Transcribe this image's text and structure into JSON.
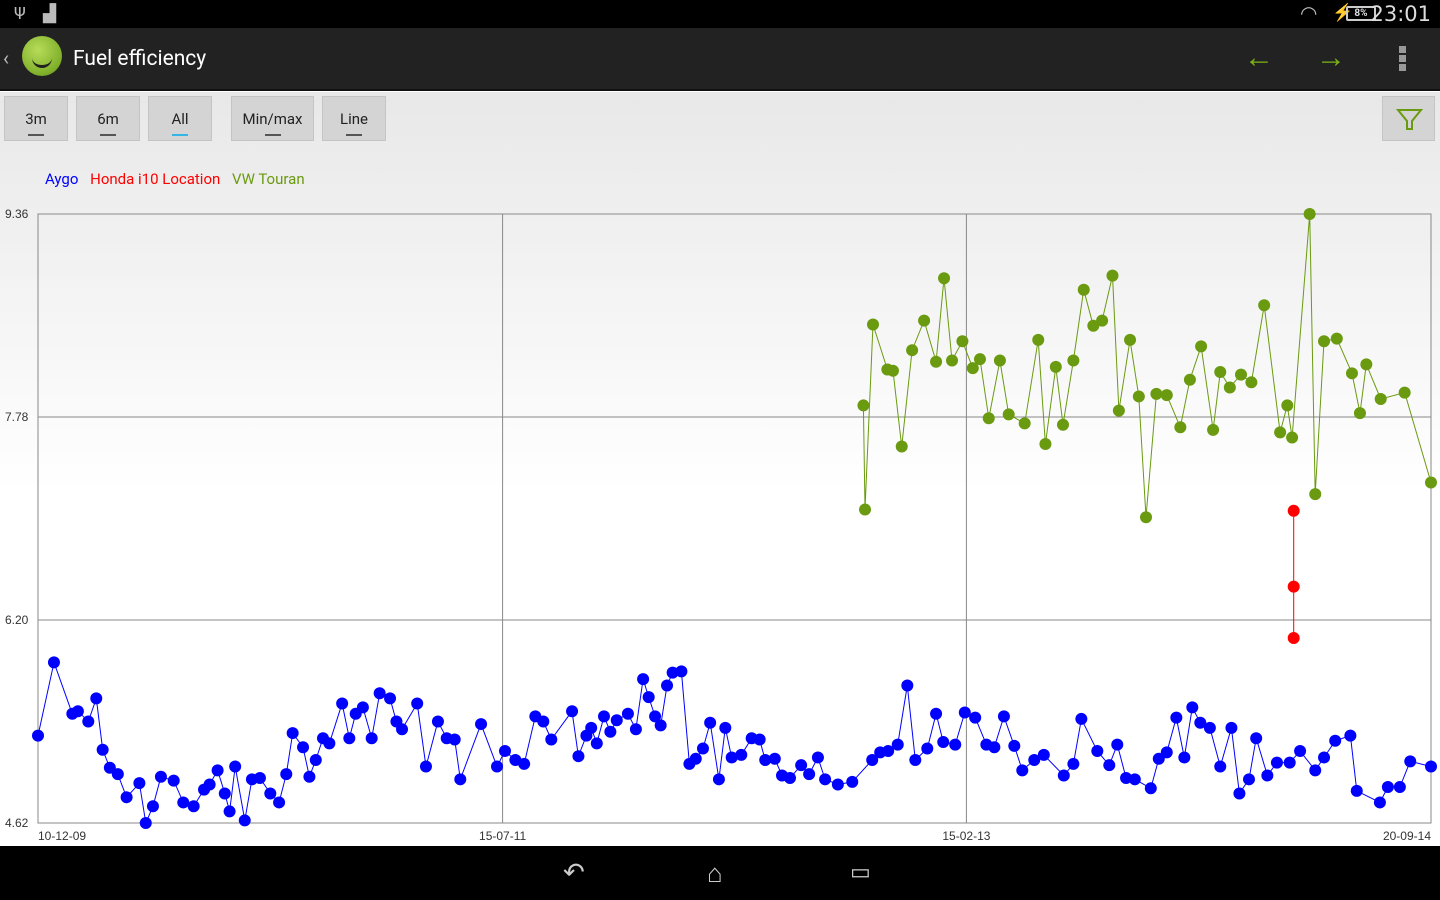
{
  "status_bar": {
    "time": "23:01",
    "battery": "8%",
    "icons": [
      "usb-icon",
      "android-icon",
      "wifi-icon",
      "charging-icon",
      "battery-icon"
    ]
  },
  "action_bar": {
    "title": "Fuel efficiency",
    "icons": [
      "back-caret-icon",
      "app-smiley-icon",
      "arrow-left-icon",
      "arrow-right-icon",
      "overflow-menu-icon"
    ],
    "accent": "#7cb518"
  },
  "toolbar": {
    "buttons": [
      {
        "label": "3m",
        "active": false
      },
      {
        "label": "6m",
        "active": false
      },
      {
        "label": "All",
        "active": true
      },
      {
        "label": "Min/max",
        "active": false
      },
      {
        "label": "Line",
        "active": false
      }
    ],
    "filter_icon": "filter-funnel-icon"
  },
  "nav_bar": {
    "icons": [
      "back-icon",
      "home-icon",
      "recent-apps-icon"
    ]
  },
  "chart_data": {
    "type": "line",
    "legend_position": "top-left",
    "grid": true,
    "xlim": [
      "2009-12-10",
      "2014-09-20"
    ],
    "ylim": [
      4.62,
      9.36
    ],
    "y_ticks": [
      "4.62",
      "6.20",
      "7.78",
      "9.36"
    ],
    "x_ticks": [
      "10-12-09",
      "15-07-11",
      "15-02-13",
      "20-09-14"
    ],
    "series": [
      {
        "name": "Aygo",
        "color": "#0000ff",
        "points": [
          [
            "2009-12-10",
            5.3
          ],
          [
            "2009-12-30",
            5.87
          ],
          [
            "2010-01-22",
            5.47
          ],
          [
            "2010-01-29",
            5.49
          ],
          [
            "2010-02-11",
            5.41
          ],
          [
            "2010-02-21",
            5.59
          ],
          [
            "2010-03-01",
            5.19
          ],
          [
            "2010-03-10",
            5.05
          ],
          [
            "2010-03-20",
            5.0
          ],
          [
            "2010-03-31",
            4.82
          ],
          [
            "2010-04-16",
            4.93
          ],
          [
            "2010-04-24",
            4.62
          ],
          [
            "2010-05-03",
            4.75
          ],
          [
            "2010-05-13",
            4.98
          ],
          [
            "2010-05-29",
            4.95
          ],
          [
            "2010-06-10",
            4.78
          ],
          [
            "2010-06-23",
            4.75
          ],
          [
            "2010-07-06",
            4.88
          ],
          [
            "2010-07-13",
            4.92
          ],
          [
            "2010-07-23",
            5.03
          ],
          [
            "2010-08-01",
            4.85
          ],
          [
            "2010-08-07",
            4.71
          ],
          [
            "2010-08-14",
            5.06
          ],
          [
            "2010-08-26",
            4.64
          ],
          [
            "2010-09-04",
            4.96
          ],
          [
            "2010-09-14",
            4.97
          ],
          [
            "2010-09-27",
            4.85
          ],
          [
            "2010-10-08",
            4.78
          ],
          [
            "2010-10-17",
            5.0
          ],
          [
            "2010-10-25",
            5.32
          ],
          [
            "2010-11-07",
            5.21
          ],
          [
            "2010-11-15",
            4.98
          ],
          [
            "2010-11-23",
            5.11
          ],
          [
            "2010-12-02",
            5.28
          ],
          [
            "2010-12-10",
            5.24
          ],
          [
            "2010-12-26",
            5.55
          ],
          [
            "2011-01-04",
            5.28
          ],
          [
            "2011-01-12",
            5.47
          ],
          [
            "2011-01-21",
            5.52
          ],
          [
            "2011-02-01",
            5.28
          ],
          [
            "2011-02-11",
            5.63
          ],
          [
            "2011-02-24",
            5.59
          ],
          [
            "2011-03-04",
            5.41
          ],
          [
            "2011-03-11",
            5.35
          ],
          [
            "2011-03-30",
            5.55
          ],
          [
            "2011-04-10",
            5.06
          ],
          [
            "2011-04-25",
            5.41
          ],
          [
            "2011-05-06",
            5.28
          ],
          [
            "2011-05-16",
            5.27
          ],
          [
            "2011-05-23",
            4.96
          ],
          [
            "2011-06-18",
            5.39
          ],
          [
            "2011-07-08",
            5.06
          ],
          [
            "2011-07-18",
            5.18
          ],
          [
            "2011-07-31",
            5.11
          ],
          [
            "2011-08-11",
            5.08
          ],
          [
            "2011-08-25",
            5.45
          ],
          [
            "2011-09-04",
            5.41
          ],
          [
            "2011-09-14",
            5.27
          ],
          [
            "2011-10-10",
            5.49
          ],
          [
            "2011-10-18",
            5.14
          ],
          [
            "2011-10-28",
            5.3
          ],
          [
            "2011-11-03",
            5.36
          ],
          [
            "2011-11-10",
            5.24
          ],
          [
            "2011-11-19",
            5.45
          ],
          [
            "2011-11-27",
            5.33
          ],
          [
            "2011-12-05",
            5.42
          ],
          [
            "2011-12-19",
            5.47
          ],
          [
            "2011-12-29",
            5.35
          ],
          [
            "2012-01-07",
            5.74
          ],
          [
            "2012-01-14",
            5.6
          ],
          [
            "2012-01-22",
            5.45
          ],
          [
            "2012-01-29",
            5.38
          ],
          [
            "2012-02-06",
            5.69
          ],
          [
            "2012-02-13",
            5.79
          ],
          [
            "2012-02-24",
            5.8
          ],
          [
            "2012-03-05",
            5.08
          ],
          [
            "2012-03-13",
            5.12
          ],
          [
            "2012-03-22",
            5.2
          ],
          [
            "2012-03-31",
            5.4
          ],
          [
            "2012-04-11",
            4.96
          ],
          [
            "2012-04-19",
            5.36
          ],
          [
            "2012-04-27",
            5.13
          ],
          [
            "2012-05-09",
            5.15
          ],
          [
            "2012-05-22",
            5.28
          ],
          [
            "2012-06-01",
            5.27
          ],
          [
            "2012-06-08",
            5.11
          ],
          [
            "2012-06-20",
            5.12
          ],
          [
            "2012-06-29",
            4.99
          ],
          [
            "2012-07-09",
            4.97
          ],
          [
            "2012-07-23",
            5.07
          ],
          [
            "2012-08-02",
            5.0
          ],
          [
            "2012-08-13",
            5.13
          ],
          [
            "2012-08-22",
            4.96
          ],
          [
            "2012-09-07",
            4.92
          ],
          [
            "2012-09-25",
            4.94
          ],
          [
            "2012-10-20",
            5.11
          ],
          [
            "2012-10-30",
            5.17
          ],
          [
            "2012-11-09",
            5.18
          ],
          [
            "2012-11-21",
            5.23
          ],
          [
            "2012-12-03",
            5.69
          ],
          [
            "2012-12-13",
            5.11
          ],
          [
            "2012-12-28",
            5.2
          ],
          [
            "2013-01-08",
            5.47
          ],
          [
            "2013-01-17",
            5.25
          ],
          [
            "2013-02-01",
            5.23
          ],
          [
            "2013-02-13",
            5.48
          ],
          [
            "2013-02-26",
            5.44
          ],
          [
            "2013-03-12",
            5.23
          ],
          [
            "2013-03-22",
            5.21
          ],
          [
            "2013-04-03",
            5.45
          ],
          [
            "2013-04-16",
            5.22
          ],
          [
            "2013-04-26",
            5.03
          ],
          [
            "2013-05-11",
            5.11
          ],
          [
            "2013-05-23",
            5.15
          ],
          [
            "2013-06-17",
            4.99
          ],
          [
            "2013-06-29",
            5.08
          ],
          [
            "2013-07-09",
            5.43
          ],
          [
            "2013-07-29",
            5.18
          ],
          [
            "2013-08-13",
            5.07
          ],
          [
            "2013-08-23",
            5.23
          ],
          [
            "2013-09-03",
            4.97
          ],
          [
            "2013-09-14",
            4.96
          ],
          [
            "2013-10-04",
            4.89
          ],
          [
            "2013-10-14",
            5.12
          ],
          [
            "2013-10-24",
            5.17
          ],
          [
            "2013-11-05",
            5.44
          ],
          [
            "2013-11-15",
            5.13
          ],
          [
            "2013-11-25",
            5.52
          ],
          [
            "2013-12-05",
            5.4
          ],
          [
            "2013-12-17",
            5.36
          ],
          [
            "2013-12-30",
            5.06
          ],
          [
            "2014-01-13",
            5.36
          ],
          [
            "2014-01-23",
            4.85
          ],
          [
            "2014-02-04",
            4.96
          ],
          [
            "2014-02-13",
            5.28
          ],
          [
            "2014-02-27",
            4.99
          ],
          [
            "2014-03-11",
            5.09
          ],
          [
            "2014-03-27",
            5.09
          ],
          [
            "2014-04-09",
            5.18
          ],
          [
            "2014-04-28",
            5.03
          ],
          [
            "2014-05-09",
            5.13
          ],
          [
            "2014-05-23",
            5.26
          ],
          [
            "2014-06-11",
            5.3
          ],
          [
            "2014-06-19",
            4.87
          ],
          [
            "2014-07-18",
            4.78
          ],
          [
            "2014-07-28",
            4.9
          ],
          [
            "2014-08-12",
            4.9
          ],
          [
            "2014-08-25",
            5.1
          ],
          [
            "2014-09-20",
            5.06
          ]
        ]
      },
      {
        "name": "Honda i10 Location",
        "color": "#ff0000",
        "points": [
          [
            "2014-04-01",
            7.05
          ],
          [
            "2014-04-01",
            6.46
          ],
          [
            "2014-04-01",
            6.06
          ]
        ]
      },
      {
        "name": "VW Touran",
        "color": "#6a9a10",
        "points": [
          [
            "2012-10-09",
            7.87
          ],
          [
            "2012-10-11",
            7.06
          ],
          [
            "2012-10-21",
            8.5
          ],
          [
            "2012-11-08",
            8.15
          ],
          [
            "2012-11-15",
            8.14
          ],
          [
            "2012-11-26",
            7.55
          ],
          [
            "2012-12-09",
            8.3
          ],
          [
            "2012-12-24",
            8.53
          ],
          [
            "2013-01-08",
            8.21
          ],
          [
            "2013-01-18",
            8.86
          ],
          [
            "2013-01-28",
            8.22
          ],
          [
            "2013-02-10",
            8.37
          ],
          [
            "2013-02-23",
            8.16
          ],
          [
            "2013-03-04",
            8.23
          ],
          [
            "2013-03-15",
            7.77
          ],
          [
            "2013-03-29",
            8.22
          ],
          [
            "2013-04-09",
            7.8
          ],
          [
            "2013-04-29",
            7.73
          ],
          [
            "2013-05-16",
            8.38
          ],
          [
            "2013-05-25",
            7.57
          ],
          [
            "2013-06-07",
            8.17
          ],
          [
            "2013-06-16",
            7.72
          ],
          [
            "2013-06-29",
            8.22
          ],
          [
            "2013-07-12",
            8.77
          ],
          [
            "2013-07-24",
            8.49
          ],
          [
            "2013-08-04",
            8.53
          ],
          [
            "2013-08-17",
            8.88
          ],
          [
            "2013-08-25",
            7.83
          ],
          [
            "2013-09-08",
            8.38
          ],
          [
            "2013-09-19",
            7.94
          ],
          [
            "2013-09-28",
            7.0
          ],
          [
            "2013-10-11",
            7.96
          ],
          [
            "2013-10-24",
            7.95
          ],
          [
            "2013-11-10",
            7.7
          ],
          [
            "2013-11-22",
            8.07
          ],
          [
            "2013-12-06",
            8.33
          ],
          [
            "2013-12-21",
            7.68
          ],
          [
            "2013-12-30",
            8.13
          ],
          [
            "2014-01-11",
            8.01
          ],
          [
            "2014-01-25",
            8.11
          ],
          [
            "2014-02-07",
            8.05
          ],
          [
            "2014-02-23",
            8.65
          ],
          [
            "2014-03-15",
            7.66
          ],
          [
            "2014-03-24",
            7.87
          ],
          [
            "2014-03-30",
            7.62
          ],
          [
            "2014-04-21",
            9.36
          ],
          [
            "2014-04-28",
            7.18
          ],
          [
            "2014-05-09",
            8.37
          ],
          [
            "2014-05-25",
            8.39
          ],
          [
            "2014-06-13",
            8.12
          ],
          [
            "2014-06-23",
            7.81
          ],
          [
            "2014-07-01",
            8.19
          ],
          [
            "2014-07-19",
            7.92
          ],
          [
            "2014-08-18",
            7.97
          ],
          [
            "2014-09-20",
            7.27
          ]
        ]
      }
    ]
  }
}
